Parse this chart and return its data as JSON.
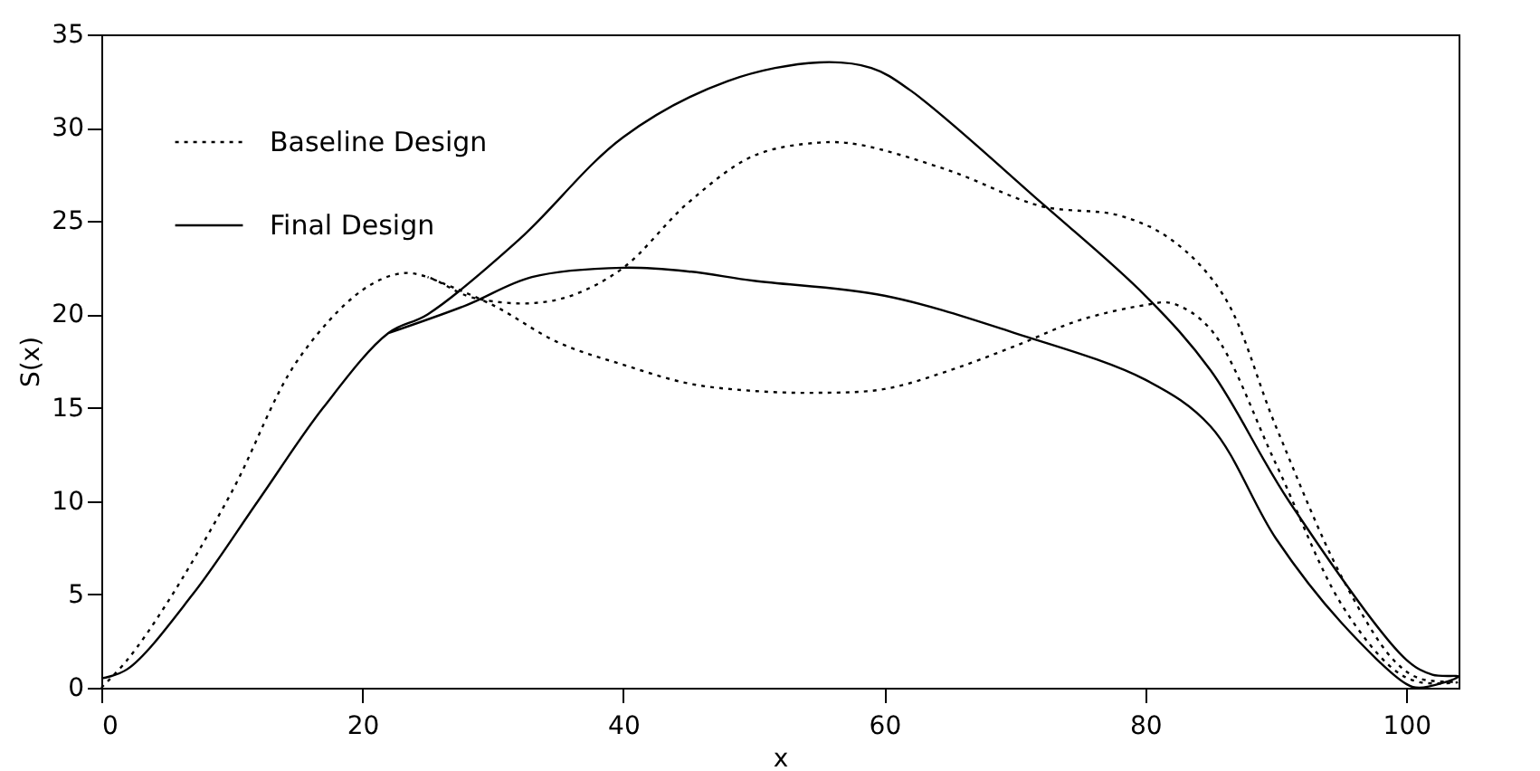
{
  "chart_data": {
    "type": "line",
    "xlabel": "x",
    "ylabel": "S(x)",
    "xlim": [
      0,
      104
    ],
    "ylim": [
      0,
      35
    ],
    "xticks": [
      0,
      20,
      40,
      60,
      80,
      100
    ],
    "yticks": [
      0,
      5,
      10,
      15,
      20,
      25,
      30,
      35
    ],
    "grid": false,
    "legend": "top left",
    "marker": "none",
    "series": [
      {
        "name": "Baseline Design",
        "color": "#000000",
        "line_style": "dotted",
        "x": [
          0,
          2,
          5,
          10,
          15,
          20,
          23,
          25,
          28,
          30,
          33,
          36,
          40,
          45,
          50,
          55,
          58,
          65,
          72,
          78,
          82,
          86,
          90,
          95,
          99,
          101,
          104,
          101,
          99,
          95,
          90,
          85,
          82,
          80,
          75,
          70,
          65,
          60,
          55,
          50,
          45,
          40,
          35,
          30,
          25
        ],
        "values": [
          0,
          1.5,
          4.5,
          10.5,
          17.5,
          21.3,
          22.2,
          22,
          21,
          20.7,
          20.6,
          21,
          22.5,
          26,
          28.5,
          29.2,
          29.1,
          27.7,
          25.8,
          25.3,
          24,
          21,
          14,
          6,
          1.5,
          0.5,
          0.3,
          0.3,
          1,
          4.5,
          12,
          19.2,
          20.6,
          20.5,
          19.7,
          18.3,
          17,
          16,
          15.8,
          15.9,
          16.3,
          17.3,
          18.5,
          20.5,
          22
        ]
      },
      {
        "name": "Final Design",
        "color": "#000000",
        "line_style": "solid",
        "x": [
          0,
          2,
          7,
          12,
          17,
          22,
          25,
          32,
          40,
          48,
          55,
          59,
          62,
          72,
          80,
          85,
          91,
          100,
          102,
          104,
          101,
          100,
          95,
          90,
          85,
          80,
          70,
          60,
          50,
          45,
          40,
          33,
          28,
          22
        ],
        "values": [
          0.5,
          1,
          5,
          10,
          15,
          19,
          20,
          24,
          29.5,
          32.5,
          33.5,
          33.2,
          32,
          26,
          21,
          17,
          10,
          1.5,
          0.7,
          0.6,
          0,
          0.2,
          3.5,
          8,
          14,
          16.5,
          19,
          21,
          21.8,
          22.3,
          22.5,
          22,
          20.5,
          19
        ]
      }
    ]
  }
}
